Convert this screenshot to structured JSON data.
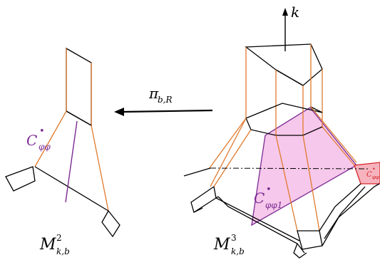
{
  "labels": {
    "k": "k",
    "pi_main": "π",
    "pi_sub": "b,R",
    "left_C_main": "C",
    "left_C_sub": "φφ",
    "right_C_main": "C",
    "right_C_sub": "φφ1",
    "red_C_main": "C",
    "red_C_sub": "φφ",
    "M2_main": "M",
    "M2_sup": "2",
    "M2_sub": "k,b",
    "M3_main": "M",
    "M3_sup": "3",
    "M3_sub": "k,b",
    "bullet": "•"
  },
  "colors": {
    "black": "#000000",
    "orange": "#E07A2E",
    "purple": "#7B2A93",
    "pink_fill": "#F3B6E4",
    "red": "#D62728",
    "red_fill": "#F6B3BE"
  }
}
